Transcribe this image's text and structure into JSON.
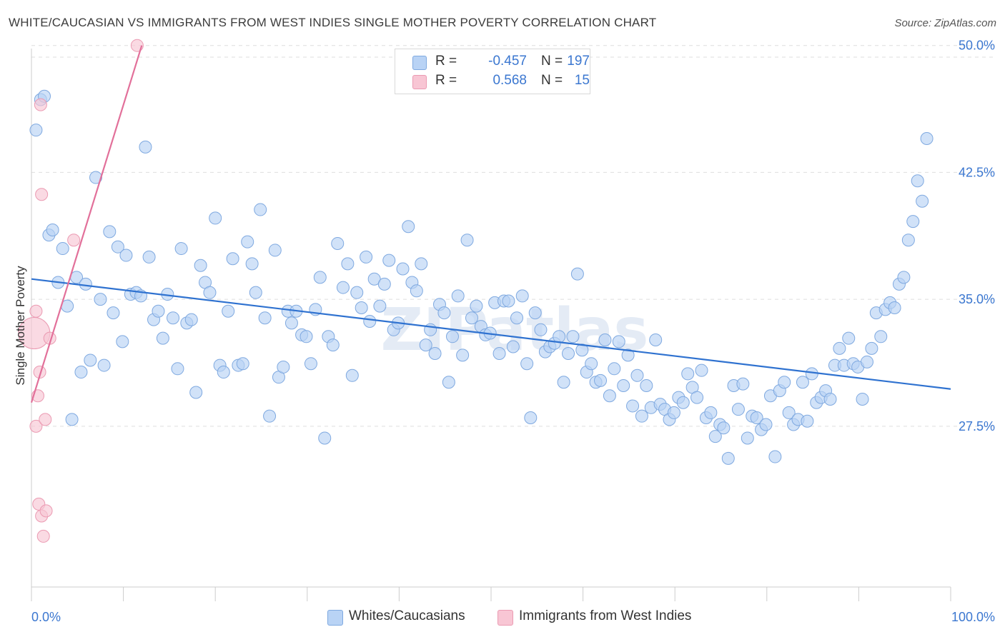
{
  "title": "WHITE/CAUCASIAN VS IMMIGRANTS FROM WEST INDIES SINGLE MOTHER POVERTY CORRELATION CHART",
  "source": "Source: ZipAtlas.com",
  "watermark": "ZIPatlas",
  "colors": {
    "blue_fill": "#b9d3f5",
    "blue_stroke": "#7fa9e0",
    "blue_line": "#2f72d0",
    "pink_fill": "#f8c6d4",
    "pink_stroke": "#eb9ab2",
    "pink_line": "#e2709a",
    "tick_label": "#3b77d0",
    "grid": "#dedede"
  },
  "legend_top": {
    "rows": [
      {
        "r_label": "R =",
        "r_value": "-0.457",
        "n_label": "N =",
        "n_value": "197"
      },
      {
        "r_label": "R =",
        "r_value": "0.568",
        "n_label": "N =",
        "n_value": "15"
      }
    ]
  },
  "legend_bottom": [
    {
      "label": "Whites/Caucasians"
    },
    {
      "label": "Immigrants from West Indies"
    }
  ],
  "chart_data": {
    "type": "scatter",
    "xlabel": "",
    "ylabel": "Single Mother Poverty",
    "xlim": [
      0,
      100
    ],
    "ylim": [
      18.0,
      51.0
    ],
    "x_tick_labels": [
      "0.0%",
      "100.0%"
    ],
    "y_ticks": [
      27.5,
      35.0,
      42.5,
      50.0
    ],
    "y_tick_labels": [
      "27.5%",
      "35.0%",
      "42.5%",
      "50.0%"
    ],
    "grid": "horizontal dashed",
    "series": [
      {
        "name": "Whites/Caucasians",
        "points": [
          [
            0.5,
            45.0
          ],
          [
            1.0,
            46.8
          ],
          [
            1.4,
            47.0
          ],
          [
            1.9,
            38.8
          ],
          [
            2.3,
            39.1
          ],
          [
            2.9,
            36.0
          ],
          [
            3.4,
            38.0
          ],
          [
            3.9,
            34.6
          ],
          [
            4.4,
            27.9
          ],
          [
            4.9,
            36.3
          ],
          [
            5.4,
            30.7
          ],
          [
            5.9,
            35.9
          ],
          [
            6.4,
            31.4
          ],
          [
            7.0,
            42.2
          ],
          [
            7.5,
            35.0
          ],
          [
            7.9,
            31.1
          ],
          [
            8.5,
            39.0
          ],
          [
            8.9,
            34.2
          ],
          [
            9.4,
            38.1
          ],
          [
            9.9,
            32.5
          ],
          [
            10.3,
            37.6
          ],
          [
            10.8,
            35.3
          ],
          [
            11.4,
            35.4
          ],
          [
            11.9,
            35.2
          ],
          [
            12.4,
            44.0
          ],
          [
            12.8,
            37.5
          ],
          [
            13.3,
            33.8
          ],
          [
            13.8,
            34.3
          ],
          [
            14.3,
            32.7
          ],
          [
            14.8,
            35.3
          ],
          [
            15.4,
            33.9
          ],
          [
            15.9,
            30.9
          ],
          [
            16.3,
            38.0
          ],
          [
            16.9,
            33.6
          ],
          [
            17.4,
            33.8
          ],
          [
            17.9,
            29.5
          ],
          [
            18.4,
            37.0
          ],
          [
            18.9,
            36.0
          ],
          [
            19.4,
            35.4
          ],
          [
            20.0,
            39.8
          ],
          [
            20.5,
            31.1
          ],
          [
            20.9,
            30.7
          ],
          [
            21.4,
            34.3
          ],
          [
            21.9,
            37.4
          ],
          [
            22.5,
            31.1
          ],
          [
            23.0,
            31.2
          ],
          [
            23.5,
            38.4
          ],
          [
            24.0,
            37.1
          ],
          [
            24.4,
            35.4
          ],
          [
            24.9,
            40.3
          ],
          [
            25.4,
            33.9
          ],
          [
            25.9,
            28.1
          ],
          [
            26.5,
            37.9
          ],
          [
            26.9,
            30.4
          ],
          [
            27.4,
            31.0
          ],
          [
            27.9,
            34.3
          ],
          [
            28.3,
            33.6
          ],
          [
            28.8,
            34.3
          ],
          [
            29.4,
            32.9
          ],
          [
            29.9,
            32.8
          ],
          [
            30.4,
            31.2
          ],
          [
            30.9,
            34.4
          ],
          [
            31.4,
            36.3
          ],
          [
            31.9,
            26.8
          ],
          [
            32.3,
            32.8
          ],
          [
            32.8,
            32.3
          ],
          [
            33.3,
            38.3
          ],
          [
            33.9,
            35.7
          ],
          [
            34.4,
            37.1
          ],
          [
            34.9,
            30.5
          ],
          [
            35.4,
            35.4
          ],
          [
            35.9,
            34.5
          ],
          [
            36.4,
            37.5
          ],
          [
            36.8,
            33.7
          ],
          [
            37.3,
            36.2
          ],
          [
            37.9,
            34.6
          ],
          [
            38.4,
            35.9
          ],
          [
            38.9,
            37.3
          ],
          [
            39.4,
            33.2
          ],
          [
            39.9,
            33.6
          ],
          [
            40.4,
            36.8
          ],
          [
            41.0,
            39.3
          ],
          [
            41.4,
            36.0
          ],
          [
            41.9,
            35.5
          ],
          [
            42.4,
            37.1
          ],
          [
            42.9,
            32.3
          ],
          [
            43.4,
            33.2
          ],
          [
            43.9,
            31.8
          ],
          [
            44.4,
            34.7
          ],
          [
            44.9,
            34.2
          ],
          [
            45.4,
            30.1
          ],
          [
            45.8,
            32.8
          ],
          [
            46.4,
            35.2
          ],
          [
            46.9,
            31.7
          ],
          [
            47.4,
            38.5
          ],
          [
            47.9,
            33.9
          ],
          [
            48.4,
            34.6
          ],
          [
            48.9,
            33.4
          ],
          [
            49.4,
            32.9
          ],
          [
            49.9,
            33.0
          ],
          [
            50.4,
            34.8
          ],
          [
            50.9,
            31.8
          ],
          [
            51.4,
            34.9
          ],
          [
            51.9,
            34.9
          ],
          [
            52.4,
            32.2
          ],
          [
            52.8,
            33.9
          ],
          [
            53.4,
            35.2
          ],
          [
            53.9,
            31.2
          ],
          [
            54.3,
            28.0
          ],
          [
            54.8,
            34.2
          ],
          [
            55.4,
            33.2
          ],
          [
            55.9,
            31.9
          ],
          [
            56.4,
            32.2
          ],
          [
            56.9,
            32.4
          ],
          [
            57.4,
            32.8
          ],
          [
            57.9,
            30.1
          ],
          [
            58.4,
            31.8
          ],
          [
            58.9,
            32.8
          ],
          [
            59.4,
            36.5
          ],
          [
            59.9,
            32.0
          ],
          [
            60.4,
            30.7
          ],
          [
            60.9,
            31.2
          ],
          [
            61.4,
            30.1
          ],
          [
            61.9,
            30.2
          ],
          [
            62.4,
            32.6
          ],
          [
            62.9,
            29.3
          ],
          [
            63.4,
            30.9
          ],
          [
            63.9,
            32.5
          ],
          [
            64.4,
            29.9
          ],
          [
            64.9,
            31.7
          ],
          [
            65.4,
            28.7
          ],
          [
            65.9,
            30.5
          ],
          [
            66.4,
            28.1
          ],
          [
            66.9,
            29.9
          ],
          [
            67.4,
            28.6
          ],
          [
            67.9,
            32.6
          ],
          [
            68.4,
            28.8
          ],
          [
            68.9,
            28.5
          ],
          [
            69.4,
            27.9
          ],
          [
            69.9,
            28.3
          ],
          [
            70.4,
            29.2
          ],
          [
            70.9,
            28.9
          ],
          [
            71.4,
            30.6
          ],
          [
            71.9,
            29.8
          ],
          [
            72.4,
            29.2
          ],
          [
            72.9,
            30.8
          ],
          [
            73.4,
            28.0
          ],
          [
            73.9,
            28.3
          ],
          [
            74.4,
            26.9
          ],
          [
            74.9,
            27.6
          ],
          [
            75.3,
            27.4
          ],
          [
            75.8,
            25.6
          ],
          [
            76.4,
            29.9
          ],
          [
            76.9,
            28.5
          ],
          [
            77.4,
            30.0
          ],
          [
            77.9,
            26.8
          ],
          [
            78.4,
            28.1
          ],
          [
            78.9,
            28.0
          ],
          [
            79.4,
            27.3
          ],
          [
            79.9,
            27.6
          ],
          [
            80.4,
            29.3
          ],
          [
            80.9,
            25.7
          ],
          [
            81.4,
            29.6
          ],
          [
            81.9,
            30.1
          ],
          [
            82.4,
            28.3
          ],
          [
            82.9,
            27.6
          ],
          [
            83.4,
            27.9
          ],
          [
            83.9,
            30.1
          ],
          [
            84.4,
            27.8
          ],
          [
            84.9,
            30.6
          ],
          [
            85.4,
            28.9
          ],
          [
            85.9,
            29.2
          ],
          [
            86.4,
            29.6
          ],
          [
            86.9,
            29.1
          ],
          [
            87.4,
            31.1
          ],
          [
            87.9,
            32.1
          ],
          [
            88.4,
            31.1
          ],
          [
            88.9,
            32.7
          ],
          [
            89.4,
            31.2
          ],
          [
            89.9,
            31.0
          ],
          [
            90.4,
            29.1
          ],
          [
            90.9,
            31.3
          ],
          [
            91.4,
            32.1
          ],
          [
            91.9,
            34.2
          ],
          [
            92.4,
            32.8
          ],
          [
            92.9,
            34.4
          ],
          [
            93.4,
            34.8
          ],
          [
            93.9,
            34.5
          ],
          [
            94.4,
            35.9
          ],
          [
            94.9,
            36.3
          ],
          [
            95.4,
            38.5
          ],
          [
            95.9,
            39.6
          ],
          [
            96.4,
            42.0
          ],
          [
            96.9,
            40.8
          ],
          [
            97.4,
            44.5
          ]
        ]
      },
      {
        "name": "Immigrants from West Indies",
        "points": [
          [
            0.3,
            33.0
          ],
          [
            0.5,
            34.3
          ],
          [
            0.5,
            27.5
          ],
          [
            0.7,
            29.3
          ],
          [
            0.8,
            22.9
          ],
          [
            0.9,
            30.7
          ],
          [
            1.0,
            46.5
          ],
          [
            1.1,
            41.2
          ],
          [
            1.1,
            22.2
          ],
          [
            1.3,
            21.0
          ],
          [
            1.5,
            27.9
          ],
          [
            1.6,
            22.5
          ],
          [
            2.0,
            32.7
          ],
          [
            4.6,
            38.5
          ],
          [
            11.5,
            50.0
          ]
        ]
      }
    ],
    "trendlines": [
      {
        "series": "Whites/Caucasians",
        "x": [
          0,
          100
        ],
        "y": [
          36.2,
          29.7
        ]
      },
      {
        "series": "Immigrants from West Indies",
        "x": [
          0,
          12.0
        ],
        "y": [
          28.9,
          50.0
        ]
      }
    ]
  }
}
